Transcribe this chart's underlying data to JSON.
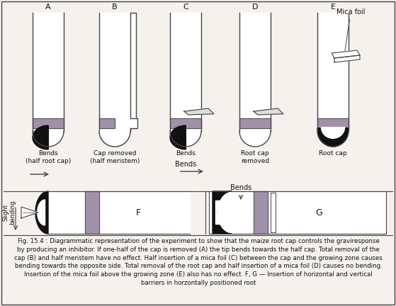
{
  "bg_color": "#f5f2ee",
  "border_color": "#444444",
  "text_color": "#111111",
  "root_fill": "#ffffff",
  "cap_color": "#111111",
  "meristem_color": "#a090a8",
  "line_color": "#444444",
  "mica_color": "#e0ddd8",
  "labels": [
    "A",
    "B",
    "C",
    "D",
    "E"
  ],
  "bottom_labels_A": "Bends\n(half root cap)",
  "bottom_labels_B": "Cap removed\n(half meristem)",
  "bottom_labels_C": "Bends",
  "bottom_labels_D": "Root cap\nremoved",
  "bottom_labels_E": "Root cap",
  "F_label": "F",
  "G_label": "G",
  "slight_bending_text": "Slight\nbending",
  "mica_foil_label": "Mica foil",
  "caption": "Fig. 15.4 : Diagrammatic representation of the experiment to show that the maize root cap controls the graviresponse\nby producing an inhibitor. If one-half of the cap is removed (A) the tip bends towards the half cap. Total removal of the\ncap (B) and half meristem have no effect. Half insertion of a mica foil (C) between the cap and the growing zone causes\nbending towards the opposite side. Total removal of the root cap and half insertion of a mica foil (D) causes no bending.\nInsertion of the mica foil above the growing zone (E) also has no effect. F, G — Insertion of horizontal and vertical\nbarriers in horzontally positioned root"
}
